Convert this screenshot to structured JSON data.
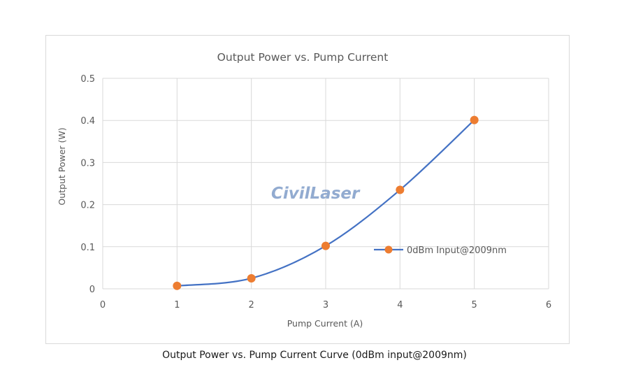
{
  "caption": "Output Power vs. Pump Current Curve (0dBm input@2009nm)",
  "watermark": "CivilLaser",
  "colors": {
    "line": "#4472c4",
    "marker": "#ed7d31",
    "grid": "#d9d9d9",
    "axis_text": "#595959",
    "watermark": "#7f9cc8"
  },
  "chart_data": {
    "type": "line",
    "title": "Output Power vs. Pump Current",
    "xlabel": "Pump Current (A)",
    "ylabel": "Output Power (W)",
    "xlim": [
      0,
      6
    ],
    "ylim": [
      0,
      0.5
    ],
    "xticks": [
      "0",
      "1",
      "2",
      "3",
      "4",
      "5",
      "6"
    ],
    "yticks": [
      "0",
      "0.1",
      "0.2",
      "0.3",
      "0.4",
      "0.5"
    ],
    "grid": true,
    "smooth": true,
    "legend_position": "right",
    "series": [
      {
        "name": "0dBm Input@2009nm",
        "x": [
          1,
          2,
          3,
          4,
          5
        ],
        "y": [
          0.007,
          0.025,
          0.102,
          0.235,
          0.401
        ]
      }
    ]
  }
}
